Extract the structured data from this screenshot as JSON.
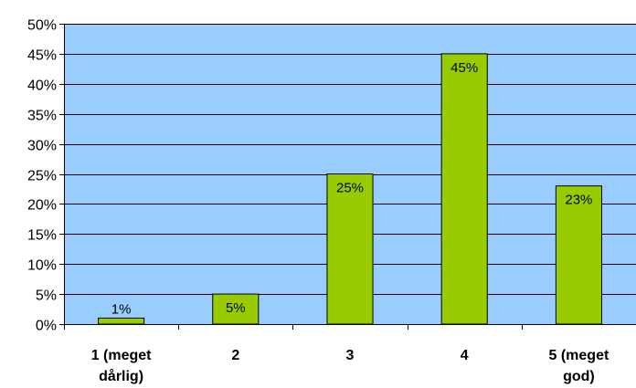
{
  "chart_data": {
    "type": "bar",
    "title": "",
    "xlabel": "",
    "ylabel": "",
    "categories": [
      [
        "1 (meget",
        "dårlig)"
      ],
      [
        "2"
      ],
      [
        "3"
      ],
      [
        "4"
      ],
      [
        "5 (meget",
        "god)"
      ]
    ],
    "values": [
      1,
      5,
      25,
      45,
      23
    ],
    "data_labels": [
      "1%",
      "5%",
      "25%",
      "45%",
      "23%"
    ],
    "ylim": [
      0,
      50
    ],
    "y_ticks": [
      0,
      5,
      10,
      15,
      20,
      25,
      30,
      35,
      40,
      45,
      50
    ],
    "y_tick_labels": [
      "0%",
      "5%",
      "10%",
      "15%",
      "20%",
      "25%",
      "30%",
      "35%",
      "40%",
      "45%",
      "50%"
    ],
    "grid": true,
    "legend": "none",
    "colors": {
      "plot_background": "#99ccff",
      "bar_fill": "#99cc00",
      "bar_stroke": "#000000",
      "gridline": "#000000"
    }
  }
}
